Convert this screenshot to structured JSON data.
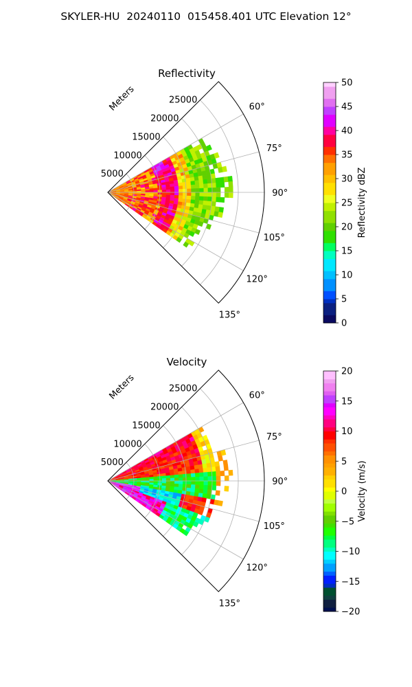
{
  "title": "SKYLER-HU  20240110  015458.401 UTC Elevation 12°",
  "chart_data": [
    {
      "type": "heatmap",
      "projection": "polar-sector",
      "title": "Reflectivity",
      "radial_label": "Meters",
      "radial_ticks": [
        "5000",
        "10000",
        "15000",
        "20000",
        "25000"
      ],
      "radial_tick_values": [
        5000,
        10000,
        15000,
        20000,
        25000
      ],
      "rlim": [
        0,
        30000
      ],
      "angle_ticks": [
        "60°",
        "75°",
        "90°",
        "105°",
        "120°",
        "135°"
      ],
      "angle_tick_values": [
        60,
        75,
        90,
        105,
        120,
        135
      ],
      "theta_range": [
        45,
        135
      ],
      "grid": true,
      "colorbar": {
        "label": "Reflectivity dBZ",
        "range": [
          0,
          50
        ],
        "ticks": [
          "0",
          "5",
          "10",
          "15",
          "20",
          "25",
          "30",
          "35",
          "40",
          "45",
          "50"
        ],
        "tick_values": [
          0,
          5,
          10,
          15,
          20,
          25,
          30,
          35,
          40,
          45,
          50
        ],
        "colormap": "radar-reflectivity"
      },
      "data_extent_m": [
        0,
        24000
      ],
      "data_sector_deg": [
        60,
        125
      ],
      "typical_values": {
        "core": 33,
        "band": 38,
        "outer": 20
      }
    },
    {
      "type": "heatmap",
      "projection": "polar-sector",
      "title": "Velocity",
      "radial_label": "Meters",
      "radial_ticks": [
        "5000",
        "10000",
        "15000",
        "20000",
        "25000"
      ],
      "radial_tick_values": [
        5000,
        10000,
        15000,
        20000,
        25000
      ],
      "rlim": [
        0,
        30000
      ],
      "angle_ticks": [
        "60°",
        "75°",
        "90°",
        "105°",
        "120°",
        "135°"
      ],
      "angle_tick_values": [
        60,
        75,
        90,
        105,
        120,
        135
      ],
      "theta_range": [
        45,
        135
      ],
      "grid": true,
      "colorbar": {
        "label": "Velocity (m/s)",
        "range": [
          -20,
          20
        ],
        "ticks": [
          "−20",
          "−15",
          "−10",
          "−5",
          "0",
          "5",
          "10",
          "15",
          "20"
        ],
        "tick_values": [
          -20,
          -15,
          -10,
          -5,
          0,
          5,
          10,
          15,
          20
        ],
        "colormap": "radar-velocity"
      },
      "data_extent_m": [
        0,
        24000
      ],
      "data_sector_deg": [
        60,
        125
      ],
      "typical_values": {
        "north": 8,
        "east": -8,
        "south": 15
      }
    }
  ]
}
